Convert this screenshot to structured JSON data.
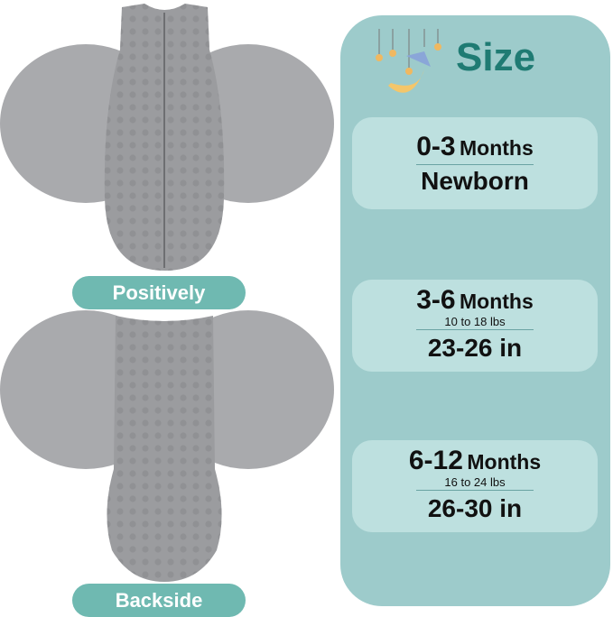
{
  "left": {
    "front_label": "Positively",
    "back_label": "Backside"
  },
  "size_panel": {
    "title": "Size",
    "icon": "moon-stars-icon",
    "colors": {
      "panel": "#9dcbcb",
      "card": "#bde0df",
      "title": "#1f7b73",
      "pill": "#6fb9b1"
    },
    "cards": [
      {
        "range": "0-3",
        "unit": "Months",
        "weight": "",
        "length": "Newborn"
      },
      {
        "range": "3-6",
        "unit": "Months",
        "weight": "10 to 18 lbs",
        "length": "23-26 in"
      },
      {
        "range": "6-12",
        "unit": "Months",
        "weight": "16 to 24 lbs",
        "length": "26-30 in"
      }
    ]
  }
}
